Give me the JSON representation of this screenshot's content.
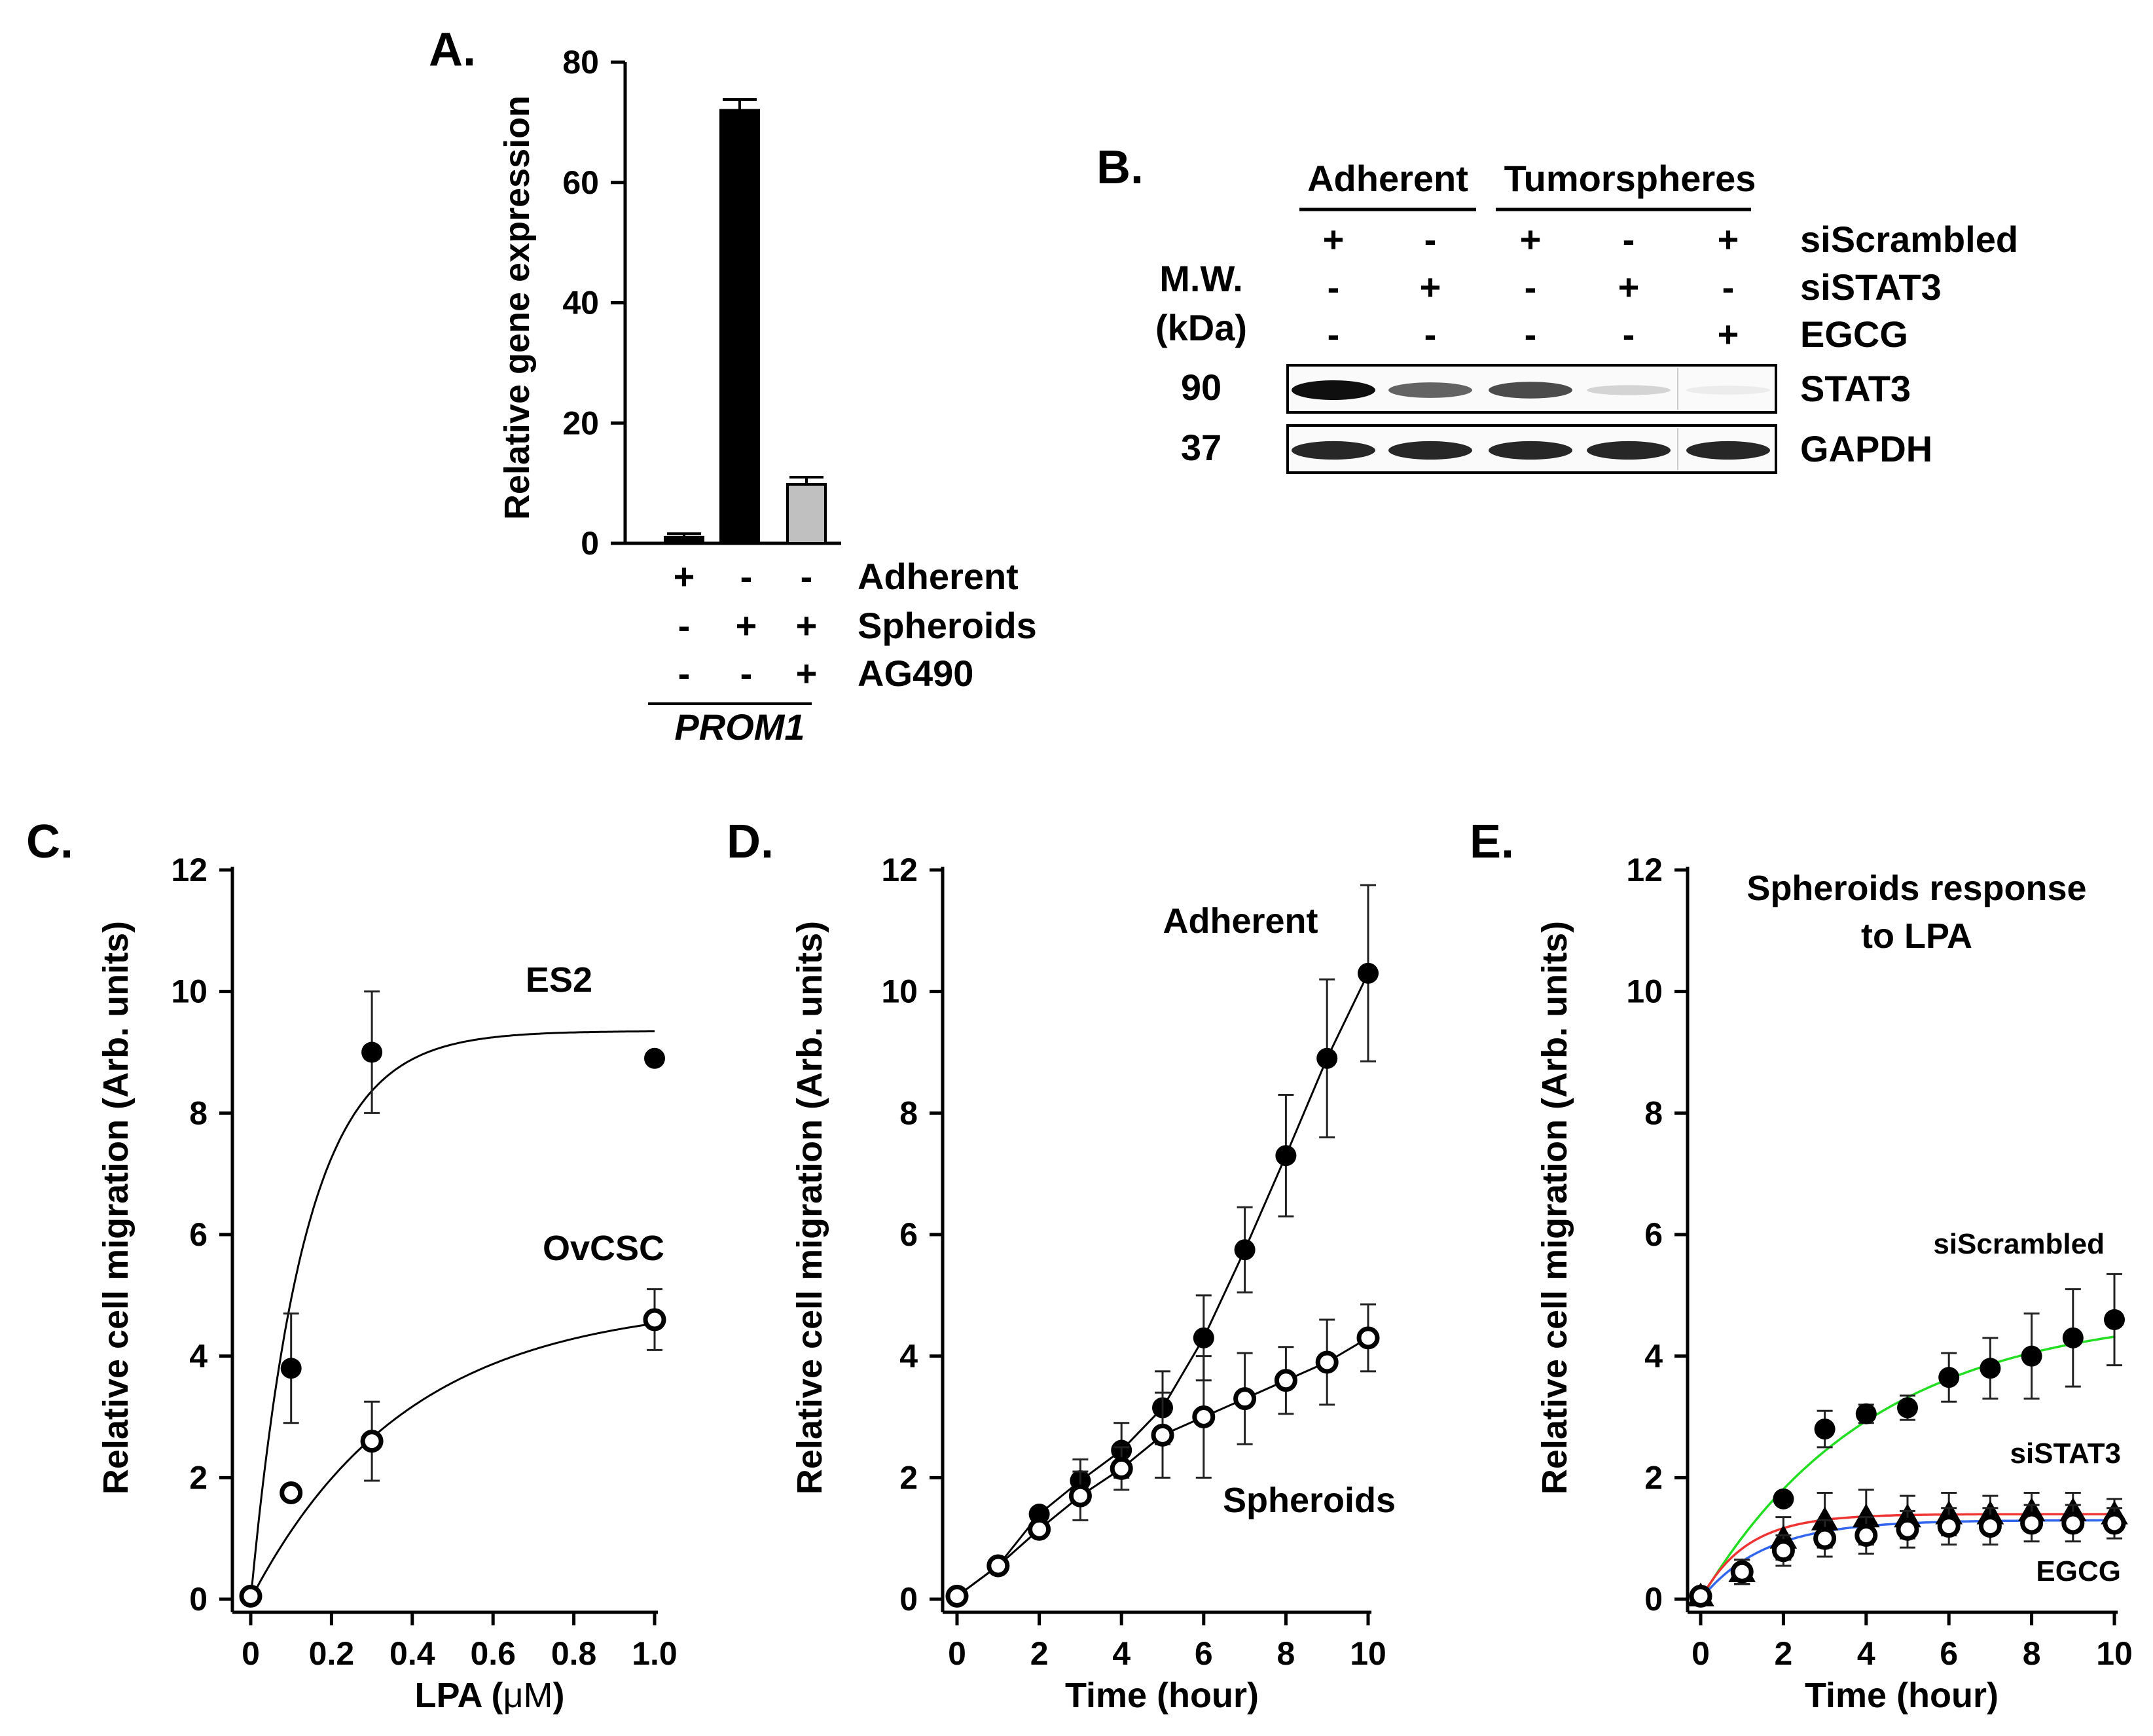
{
  "panels": {
    "A": {
      "letter": "A.",
      "chart_data": {
        "type": "bar",
        "title": "",
        "xlabel": "",
        "ylabel": "Relative gene expression",
        "ylim": [
          0,
          80
        ],
        "yticks": [
          0,
          20,
          40,
          60,
          80
        ],
        "categories": [
          "Adherent",
          "Spheroids",
          "Spheroids + AG490"
        ],
        "values": [
          1,
          72,
          9.8
        ],
        "errors": [
          0.6,
          1.8,
          1.2
        ],
        "colors": [
          "#000000",
          "#000000",
          "#c0c0c0"
        ],
        "conditions": [
          {
            "label": "Adherent",
            "signs": [
              "+",
              "-",
              "-"
            ]
          },
          {
            "label": "Spheroids",
            "signs": [
              "-",
              "+",
              "+"
            ]
          },
          {
            "label": "AG490",
            "signs": [
              "-",
              "-",
              "+"
            ]
          }
        ],
        "gene": "PROM1"
      }
    },
    "B": {
      "letter": "B.",
      "group_headers": [
        "Adherent",
        "Tumorspheres"
      ],
      "mw_label_1": "M.W.",
      "mw_label_2": "(kDa)",
      "rows": [
        {
          "label": "siScrambled",
          "signs": [
            "+",
            "-",
            "+",
            "-",
            "+"
          ]
        },
        {
          "label": "siSTAT3",
          "signs": [
            "-",
            "+",
            "-",
            "+",
            "-"
          ]
        },
        {
          "label": "EGCG",
          "signs": [
            "-",
            "-",
            "-",
            "-",
            "+"
          ]
        }
      ],
      "blots": [
        {
          "mw": "90",
          "label": "STAT3",
          "intensities": [
            1.0,
            0.65,
            0.75,
            0.18,
            0.08
          ]
        },
        {
          "mw": "37",
          "label": "GAPDH",
          "intensities": [
            0.9,
            0.9,
            0.9,
            0.9,
            0.9
          ]
        }
      ]
    },
    "C": {
      "letter": "C.",
      "chart_data": {
        "type": "scatter",
        "xlabel_pre": "LPA (",
        "xlabel_unit": "μM",
        "xlabel_post": ")",
        "ylabel": "Relative cell migration (Arb. units)",
        "xlim": [
          0,
          1.0
        ],
        "ylim": [
          0,
          12
        ],
        "xticks": [
          "0",
          "0.2",
          "0.4",
          "0.6",
          "0.8",
          "1.0"
        ],
        "xtick_values": [
          0,
          0.2,
          0.4,
          0.6,
          0.8,
          1.0
        ],
        "yticks": [
          0,
          2,
          4,
          6,
          8,
          10,
          12
        ],
        "series": [
          {
            "name": "ES2",
            "marker": "filled",
            "x": [
              0,
              0.1,
              0.3,
              1.0
            ],
            "y": [
              0.05,
              3.8,
              9.0,
              8.9
            ],
            "err": [
              0,
              0.9,
              1.0,
              0
            ],
            "fit": {
              "vmax": 9.35,
              "k": 7.5,
              "line_color": "#000000"
            }
          },
          {
            "name": "OvCSC",
            "marker": "open",
            "x": [
              0,
              0.1,
              0.3,
              1.0
            ],
            "y": [
              0.05,
              1.75,
              2.6,
              4.6
            ],
            "err": [
              0,
              0,
              0.65,
              0.5
            ],
            "fit": {
              "vmax": 4.9,
              "k": 2.6,
              "line_color": "#000000"
            }
          }
        ]
      }
    },
    "D": {
      "letter": "D.",
      "chart_data": {
        "type": "line",
        "xlabel": "Time (hour)",
        "ylabel": "Relative cell migration (Arb. units)",
        "xlim": [
          0,
          10
        ],
        "ylim": [
          0,
          12
        ],
        "xticks": [
          0,
          2,
          4,
          6,
          8,
          10
        ],
        "yticks": [
          0,
          2,
          4,
          6,
          8,
          10,
          12
        ],
        "series": [
          {
            "name": "Adherent",
            "marker": "filled",
            "x": [
              0,
              1,
              2,
              3,
              4,
              5,
              6,
              7,
              8,
              9,
              10
            ],
            "y": [
              0.05,
              0.55,
              1.4,
              1.95,
              2.45,
              3.15,
              4.3,
              5.75,
              7.3,
              8.9,
              10.3
            ],
            "err": [
              0,
              0,
              0.1,
              0.35,
              0.45,
              0.6,
              0.7,
              0.7,
              1.0,
              1.3,
              1.45
            ]
          },
          {
            "name": "Spheroids",
            "marker": "open",
            "x": [
              0,
              1,
              2,
              3,
              4,
              5,
              6,
              7,
              8,
              9,
              10
            ],
            "y": [
              0.05,
              0.55,
              1.15,
              1.7,
              2.15,
              2.7,
              3.0,
              3.3,
              3.6,
              3.9,
              4.3
            ],
            "err": [
              0,
              0,
              0.1,
              0.4,
              0.35,
              0.7,
              1.0,
              0.75,
              0.55,
              0.7,
              0.55
            ]
          }
        ]
      }
    },
    "E": {
      "letter": "E.",
      "chart_data": {
        "type": "line",
        "title_line1": "Spheroids response",
        "title_line2": "to LPA",
        "xlabel": "Time (hour)",
        "ylabel": "Relative cell migration (Arb. units)",
        "xlim": [
          0,
          10
        ],
        "ylim": [
          0,
          12
        ],
        "xticks": [
          0,
          2,
          4,
          6,
          8,
          10
        ],
        "yticks": [
          0,
          2,
          4,
          6,
          8,
          10,
          12
        ],
        "series": [
          {
            "name": "siScrambled",
            "marker": "filled",
            "fit_color": "#22dd22",
            "fit": {
              "vmax": 4.75,
              "k": 0.24
            },
            "x": [
              0,
              1,
              2,
              3,
              4,
              5,
              6,
              7,
              8,
              9,
              10
            ],
            "y": [
              0.05,
              0.45,
              1.65,
              2.8,
              3.05,
              3.15,
              3.65,
              3.8,
              4.0,
              4.3,
              4.6
            ],
            "err": [
              0,
              0.2,
              0.1,
              0.3,
              0.15,
              0.2,
              0.4,
              0.5,
              0.7,
              0.8,
              0.75
            ]
          },
          {
            "name": "siSTAT3",
            "marker": "triangle",
            "fit_color": "#ee3333",
            "fit": {
              "vmax": 1.4,
              "k": 0.9
            },
            "x": [
              0,
              1,
              2,
              3,
              4,
              5,
              6,
              7,
              8,
              9,
              10
            ],
            "y": [
              0.05,
              0.45,
              1.0,
              1.3,
              1.35,
              1.35,
              1.4,
              1.4,
              1.45,
              1.45,
              1.4
            ],
            "err": [
              0,
              0.2,
              0.35,
              0.45,
              0.45,
              0.35,
              0.35,
              0.3,
              0.3,
              0.3,
              0.25
            ]
          },
          {
            "name": "EGCG",
            "marker": "open",
            "fit_color": "#3366ee",
            "fit": {
              "vmax": 1.3,
              "k": 0.65
            },
            "x": [
              0,
              1,
              2,
              3,
              4,
              5,
              6,
              7,
              8,
              9,
              10
            ],
            "y": [
              0.05,
              0.45,
              0.8,
              1.0,
              1.05,
              1.15,
              1.2,
              1.2,
              1.25,
              1.25,
              1.25
            ],
            "err": [
              0,
              0.2,
              0.25,
              0.3,
              0.3,
              0.3,
              0.3,
              0.3,
              0.3,
              0.3,
              0.25
            ]
          }
        ]
      }
    }
  }
}
